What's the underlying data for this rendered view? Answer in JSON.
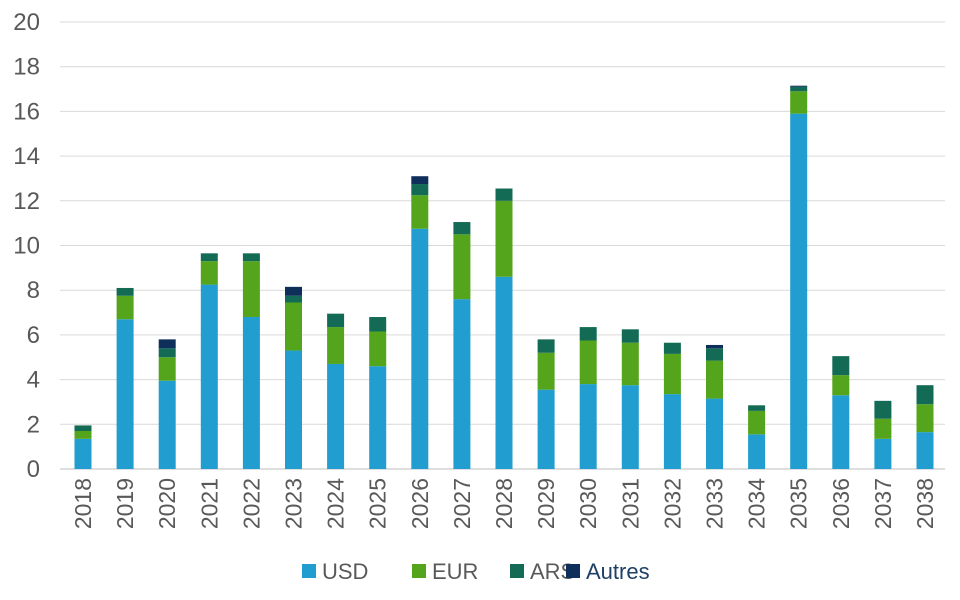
{
  "chart_data": {
    "type": "bar",
    "stacked": true,
    "categories": [
      "2018",
      "2019",
      "2020",
      "2021",
      "2022",
      "2023",
      "2024",
      "2025",
      "2026",
      "2027",
      "2028",
      "2029",
      "2030",
      "2031",
      "2032",
      "2033",
      "2034",
      "2035",
      "2036",
      "2037",
      "2038"
    ],
    "series": [
      {
        "name": "USD",
        "color": "#219ECF",
        "values": [
          1.35,
          6.7,
          3.95,
          8.25,
          6.8,
          5.3,
          4.7,
          4.6,
          10.75,
          7.6,
          8.6,
          3.55,
          3.8,
          3.75,
          3.35,
          3.15,
          1.55,
          15.9,
          3.3,
          1.35,
          1.65
        ]
      },
      {
        "name": "EUR",
        "color": "#54A51C",
        "values": [
          0.35,
          1.05,
          1.05,
          1.05,
          2.5,
          2.15,
          1.65,
          1.55,
          1.5,
          2.9,
          3.4,
          1.65,
          1.95,
          1.9,
          1.8,
          1.7,
          1.05,
          1.0,
          0.9,
          0.9,
          1.25
        ]
      },
      {
        "name": "ARS",
        "color": "#146B55",
        "values": [
          0.25,
          0.35,
          0.4,
          0.35,
          0.35,
          0.3,
          0.6,
          0.65,
          0.5,
          0.55,
          0.55,
          0.6,
          0.6,
          0.6,
          0.5,
          0.55,
          0.25,
          0.2,
          0.85,
          0.8,
          0.85
        ]
      },
      {
        "name": "Autres",
        "color": "#0E2F5A",
        "values": [
          0,
          0,
          0.4,
          0,
          0,
          0.4,
          0,
          0,
          0.35,
          0,
          0,
          0,
          0,
          0,
          0,
          0.15,
          0,
          0.05,
          0,
          0,
          0
        ]
      }
    ],
    "ylim": [
      0,
      20
    ],
    "yticks": [
      0,
      2,
      4,
      6,
      8,
      10,
      12,
      14,
      16,
      18,
      20
    ],
    "grid": true,
    "legend_position": "bottom",
    "xlabel": "",
    "ylabel": ""
  }
}
